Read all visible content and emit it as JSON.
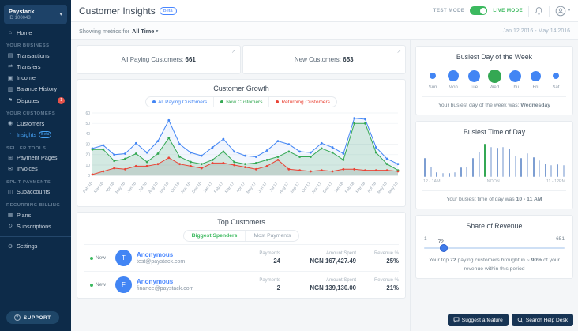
{
  "sidebar": {
    "account": {
      "name": "Paystack",
      "id": "ID 100043",
      "caret_icon": "chevron-down-icon"
    },
    "home": {
      "label": "Home",
      "icon": "home-icon",
      "glyph": "⌂"
    },
    "sections": [
      {
        "title": "YOUR BUSINESS",
        "items": [
          {
            "label": "Transactions",
            "icon": "card-icon",
            "glyph": "▤"
          },
          {
            "label": "Transfers",
            "icon": "transfer-arrows-icon",
            "glyph": "⇄"
          },
          {
            "label": "Income",
            "icon": "income-folder-icon",
            "glyph": "▣"
          },
          {
            "label": "Balance History",
            "icon": "history-folder-icon",
            "glyph": "▥"
          },
          {
            "label": "Disputes",
            "icon": "flag-icon",
            "glyph": "⚑",
            "badge": "1"
          }
        ]
      },
      {
        "title": "YOUR CUSTOMERS",
        "items": [
          {
            "label": "Customers",
            "icon": "customers-icon",
            "glyph": "◉"
          },
          {
            "label": "Insights",
            "icon": "insights-pie-icon",
            "glyph": "◔",
            "beta": "Beta",
            "active": true
          }
        ]
      },
      {
        "title": "SELLER TOOLS",
        "items": [
          {
            "label": "Payment Pages",
            "icon": "payment-pages-icon",
            "glyph": "⊞"
          },
          {
            "label": "Invoices",
            "icon": "invoice-icon",
            "glyph": "✉"
          }
        ]
      },
      {
        "title": "SPLIT PAYMENTS",
        "items": [
          {
            "label": "Subaccounts",
            "icon": "subaccounts-icon",
            "glyph": "◫"
          }
        ]
      },
      {
        "title": "RECURRING BILLING",
        "items": [
          {
            "label": "Plans",
            "icon": "plans-icon",
            "glyph": "▦"
          },
          {
            "label": "Subscriptions",
            "icon": "subscriptions-refresh-icon",
            "glyph": "↻"
          }
        ]
      }
    ],
    "settings": {
      "label": "Settings",
      "icon": "gear-icon",
      "glyph": "⚙"
    },
    "support": {
      "label": "SUPPORT",
      "icon": "question-circle-icon",
      "glyph": "?"
    }
  },
  "header": {
    "title": "Customer Insights",
    "beta": "Beta",
    "test_mode": "TEST MODE",
    "live_mode": "LIVE MODE",
    "bell_icon": "notification-bell-icon",
    "avatar_icon": "user-avatar-icon",
    "avatar_caret": "▾"
  },
  "filter_bar": {
    "prefix": "Showing metrics for",
    "value": "All Time",
    "caret": "▾",
    "date_range": "Jan 12 2016 - May 14 2016"
  },
  "stats": [
    {
      "label": "All Paying Customers:",
      "value": "661",
      "expand_icon": "↗"
    },
    {
      "label": "New Customers:",
      "value": "653",
      "expand_icon": "↗"
    }
  ],
  "top_customers": {
    "title": "Top Customers",
    "tabs": [
      {
        "label": "Biggest Spenders",
        "active": true
      },
      {
        "label": "Most Payments",
        "active": false
      }
    ],
    "headers": [
      "Payments",
      "Amount Spent",
      "Revenue %"
    ],
    "rows": [
      {
        "status": "New",
        "initial": "T",
        "name": "Anonymous",
        "email": "test@paystack.com",
        "payments": "24",
        "amount": "NGN 167,427.49",
        "revenue": "25%"
      },
      {
        "status": "New",
        "initial": "F",
        "name": "Anonymous",
        "email": "finance@paystack.com",
        "payments": "2",
        "amount": "NGN 139,130.00",
        "revenue": "21%"
      }
    ]
  },
  "right": {
    "busiest_day": {
      "title": "Busiest Day of the Week",
      "caption_prefix": "Your busiest day of the week was: ",
      "caption_bold": "Wednesday"
    },
    "busiest_time": {
      "title": "Busiest Time of Day",
      "caption_prefix": "Your busiest time of day was ",
      "caption_bold": "10 - 11 AM"
    },
    "share": {
      "title": "Share of Revenue",
      "min": "1",
      "value": "72",
      "max": "651",
      "caption_p1": "Your top ",
      "caption_b1": "72",
      "caption_p2": " paying customers brought in ~ ",
      "caption_b2": "90%",
      "caption_p3": " of your revenue within this period"
    }
  },
  "footer": {
    "suggest_label": "Suggest a feature",
    "suggest_icon": "comment-icon",
    "help_label": "Search Help Desk",
    "help_icon": "search-icon"
  },
  "colors": {
    "blue": "#4285f4",
    "green": "#34a853",
    "red": "#ea4335",
    "sidebar_navy": "#0d2b49",
    "accent_link": "#4886ff",
    "toggle_green": "#3cb95f",
    "bar_dark": "#7d9ed2",
    "bar_light": "#b7c9e6"
  },
  "chart_data": [
    {
      "id": "customer_growth",
      "type": "area",
      "title": "Customer Growth",
      "categories": [
        "Feb 16",
        "Mar 16",
        "Apr 16",
        "May 16",
        "Jun 16",
        "Jul 16",
        "Aug 16",
        "Sep 16",
        "Oct 16",
        "Nov 16",
        "Dec 16",
        "Jan 17",
        "Feb 17",
        "Mar 17",
        "Apr 17",
        "May 17",
        "Jun 17",
        "Jul 17",
        "Aug 17",
        "Sep 17",
        "Oct 17",
        "Nov 17",
        "Dec 17",
        "Jan 18",
        "Feb 18",
        "Mar 18",
        "Apr 18",
        "May 18",
        "May 18"
      ],
      "series": [
        {
          "name": "All Paying Customers",
          "color": "#4285f4",
          "fill": "rgba(66,133,244,0.07)",
          "values": [
            26,
            29,
            20,
            21,
            31,
            22,
            33,
            53,
            30,
            22,
            19,
            27,
            35,
            23,
            19,
            18,
            24,
            33,
            30,
            23,
            22,
            31,
            27,
            21,
            55,
            54,
            27,
            16,
            11
          ]
        },
        {
          "name": "New Customers",
          "color": "#34a853",
          "fill": "rgba(52,168,83,0.16)",
          "values": [
            25,
            25,
            14,
            16,
            21,
            13,
            21,
            36,
            18,
            13,
            11,
            15,
            23,
            13,
            11,
            12,
            15,
            18,
            23,
            18,
            18,
            26,
            22,
            15,
            50,
            50,
            22,
            11,
            5
          ]
        },
        {
          "name": "Returning Customers",
          "color": "#ea4335",
          "fill": "rgba(130,130,130,0.22)",
          "values": [
            1,
            4,
            7,
            6,
            9,
            9,
            11,
            17,
            11,
            9,
            7,
            12,
            12,
            10,
            8,
            6,
            9,
            15,
            6,
            5,
            4,
            5,
            4,
            6,
            6,
            5,
            5,
            5,
            4
          ]
        }
      ],
      "ylim": [
        0,
        60
      ],
      "yticks": [
        0,
        10,
        20,
        30,
        40,
        50,
        60
      ],
      "grid": true,
      "legend_position": "top"
    },
    {
      "id": "busiest_day",
      "type": "bubble",
      "title": "Busiest Day of the Week",
      "categories": [
        "Sun",
        "Mon",
        "Tue",
        "Wed",
        "Thu",
        "Fri",
        "Sat"
      ],
      "values": [
        8,
        14,
        15,
        17,
        15,
        13,
        8
      ],
      "highlight_index": 3,
      "highlight_label": "Wednesday"
    },
    {
      "id": "busiest_time",
      "type": "bar",
      "title": "Busiest Time of Day",
      "x_axis_labels": [
        "12 - 1AM",
        "NOON",
        "11 - 12PM"
      ],
      "values": [
        45,
        25,
        12,
        10,
        10,
        12,
        22,
        25,
        45,
        60,
        80,
        72,
        70,
        72,
        68,
        52,
        45,
        58,
        48,
        40,
        32,
        28,
        30,
        28
      ],
      "highlight_index": 10,
      "highlight_label": "10 - 11 AM"
    }
  ]
}
